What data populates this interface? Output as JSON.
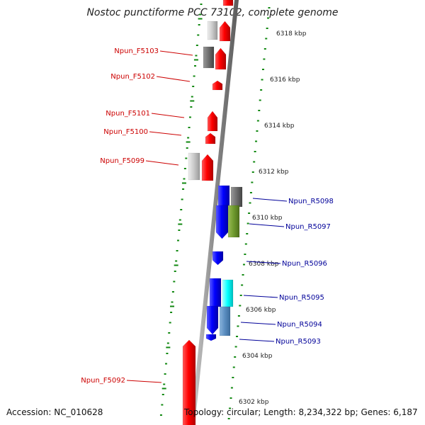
{
  "title": "Nostoc punctiforme PCC 73102, complete genome",
  "accession": "Accession: NC_010628",
  "summary": "Topology: circular; Length: 8,234,322 bp; Genes: 6,187",
  "colors": {
    "forward_gene": "#ff0000",
    "reverse_gene": "#0000ff",
    "forward_label": "#cc0000",
    "reverse_label": "#000099",
    "backbone": "#8a8a8a",
    "dots": "#118811"
  },
  "scale_labels": [
    "6318 kbp",
    "6316 kbp",
    "6314 kbp",
    "6312 kbp",
    "6310 kbp",
    "6308 kbp",
    "6306 kbp",
    "6304 kbp",
    "6302 kbp"
  ],
  "forward_genes": [
    "Npun_F5103",
    "Npun_F5102",
    "Npun_F5101",
    "Npun_F5100",
    "Npun_F5099",
    "Npun_F5092"
  ],
  "reverse_genes": [
    "Npun_R5098",
    "Npun_R5097",
    "Npun_R5096",
    "Npun_R5095",
    "Npun_R5094",
    "Npun_R5093"
  ]
}
